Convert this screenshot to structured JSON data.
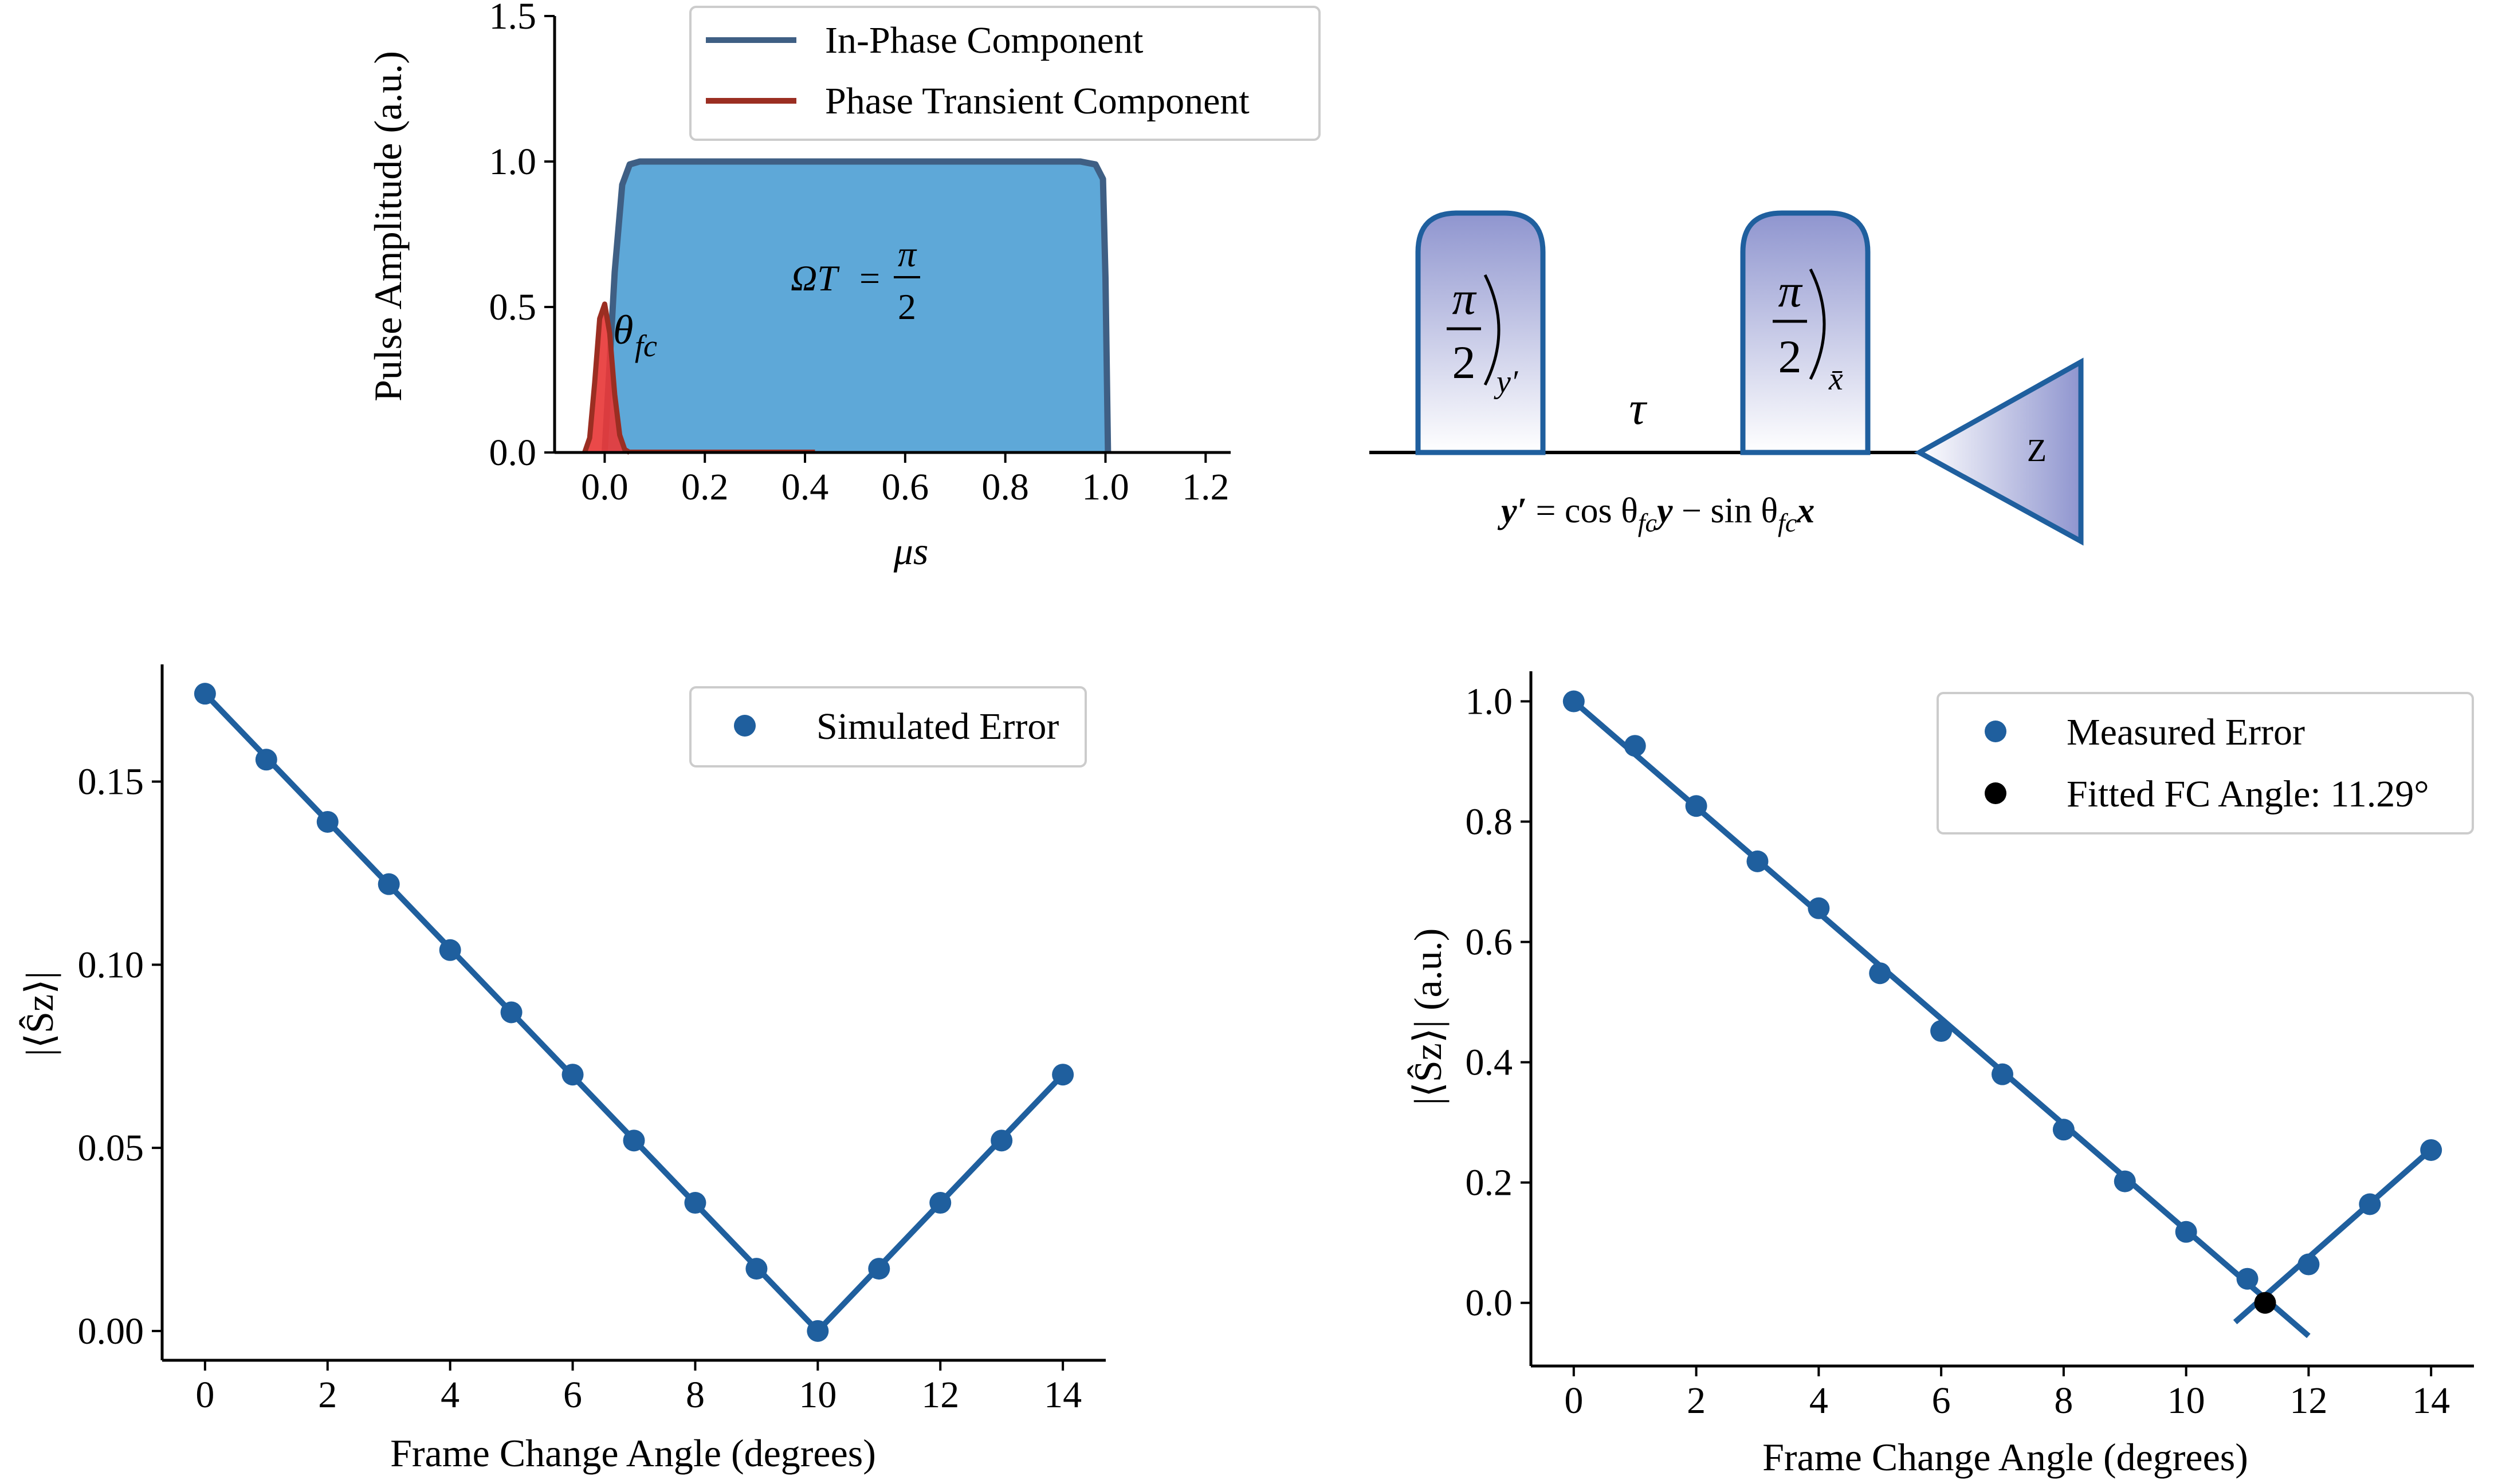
{
  "colors": {
    "in_phase": "#3f5f84",
    "in_phase_fill": "#5ea8d8",
    "transient": "#9b2e22",
    "transient_fill": "#e8393a",
    "series": "#1f5f9e",
    "fit_point": "#000000",
    "gate_border": "#1f5f9e",
    "gate_fill_top": "#9aa0d4",
    "legend_border": "#cccccc"
  },
  "chart_data": [
    {
      "id": "pulse",
      "type": "area",
      "xlabel": "μs",
      "ylabel": "Pulse Amplitude (a.u.)",
      "xlim": [
        -0.1,
        1.25
      ],
      "ylim": [
        0.0,
        1.5
      ],
      "xticks": [
        "0.0",
        "0.2",
        "0.4",
        "0.6",
        "0.8",
        "1.0",
        "1.2"
      ],
      "xtick_values": [
        0.0,
        0.2,
        0.4,
        0.6,
        0.8,
        1.0,
        1.2
      ],
      "yticks": [
        "0.0",
        "0.5",
        "1.0",
        "1.5"
      ],
      "ytick_values": [
        0.0,
        0.5,
        1.0,
        1.5
      ],
      "legend": [
        "In-Phase Component",
        "Phase Transient Component"
      ],
      "legend_position": "top-right",
      "annotations": {
        "omega_t": "ΩT",
        "equals": "=",
        "pi": "π",
        "two": "2",
        "theta": "θ",
        "theta_sub": "fc"
      },
      "series": [
        {
          "name": "In-Phase Component",
          "x": [
            0.0,
            0.02,
            0.035,
            0.05,
            0.07,
            0.5,
            0.95,
            0.98,
            0.995,
            1.0,
            1.005
          ],
          "y": [
            0.0,
            0.62,
            0.92,
            0.99,
            1.0,
            1.0,
            1.0,
            0.99,
            0.94,
            0.6,
            0.0
          ]
        },
        {
          "name": "Phase Transient Component",
          "x": [
            -0.04,
            -0.03,
            -0.02,
            -0.01,
            0.0,
            0.01,
            0.02,
            0.03,
            0.04,
            0.05
          ],
          "y": [
            0.0,
            0.05,
            0.24,
            0.46,
            0.51,
            0.41,
            0.2,
            0.06,
            0.01,
            0.0
          ]
        }
      ]
    },
    {
      "id": "simulated",
      "type": "scatter",
      "xlabel": "Frame Change Angle (degrees)",
      "ylabel": "|⟨Ŝz⟩|",
      "xlim": [
        -0.7,
        14.7
      ],
      "ylim": [
        -0.008,
        0.182
      ],
      "xticks": [
        "0",
        "2",
        "4",
        "6",
        "8",
        "10",
        "12",
        "14"
      ],
      "xtick_values": [
        0,
        2,
        4,
        6,
        8,
        10,
        12,
        14
      ],
      "yticks": [
        "0.00",
        "0.05",
        "0.10",
        "0.15"
      ],
      "ytick_values": [
        0.0,
        0.05,
        0.1,
        0.15
      ],
      "legend": [
        "Simulated Error"
      ],
      "legend_position": "top-right",
      "series": [
        {
          "name": "Simulated Error",
          "x": [
            0,
            1,
            2,
            3,
            4,
            5,
            6,
            7,
            8,
            9,
            10,
            11,
            12,
            13,
            14
          ],
          "y": [
            0.174,
            0.156,
            0.139,
            0.122,
            0.104,
            0.087,
            0.07,
            0.052,
            0.035,
            0.017,
            0.0,
            0.017,
            0.035,
            0.052,
            0.07
          ]
        }
      ],
      "fit_lines": [
        {
          "x": [
            0,
            10
          ],
          "y": [
            0.174,
            0.0
          ]
        },
        {
          "x": [
            10,
            14
          ],
          "y": [
            0.0,
            0.07
          ]
        }
      ]
    },
    {
      "id": "measured",
      "type": "scatter",
      "xlabel": "Frame Change Angle (degrees)",
      "ylabel": "|⟨Ŝz⟩| (a.u.)",
      "xlim": [
        -0.7,
        14.7
      ],
      "ylim": [
        -0.105,
        1.05
      ],
      "xticks": [
        "0",
        "2",
        "4",
        "6",
        "8",
        "10",
        "12",
        "14"
      ],
      "xtick_values": [
        0,
        2,
        4,
        6,
        8,
        10,
        12,
        14
      ],
      "yticks": [
        "0.0",
        "0.2",
        "0.4",
        "0.6",
        "0.8",
        "1.0"
      ],
      "ytick_values": [
        0.0,
        0.2,
        0.4,
        0.6,
        0.8,
        1.0
      ],
      "legend": [
        "Measured Error",
        "Fitted FC Angle: 11.29°"
      ],
      "legend_position": "top-right",
      "series": [
        {
          "name": "Measured Error",
          "x": [
            0,
            1,
            2,
            3,
            4,
            5,
            6,
            7,
            8,
            9,
            10,
            11,
            12,
            13,
            14
          ],
          "y": [
            1.0,
            0.926,
            0.826,
            0.734,
            0.656,
            0.548,
            0.452,
            0.38,
            0.288,
            0.202,
            0.118,
            0.04,
            0.064,
            0.164,
            0.254
          ]
        },
        {
          "name": "Fitted FC Angle: 11.29°",
          "x": [
            11.29
          ],
          "y": [
            0.0
          ]
        }
      ],
      "fit_lines": [
        {
          "x": [
            0,
            12.0
          ],
          "y": [
            1.0,
            -0.055
          ]
        },
        {
          "x": [
            10.8,
            14.0
          ],
          "y": [
            -0.032,
            0.255
          ]
        }
      ]
    }
  ],
  "diagram": {
    "gate1_pi": "π",
    "gate1_two": "2",
    "gate1_sub": "y′",
    "gate2_pi": "π",
    "gate2_two": "2",
    "gate2_sub": "x̄",
    "tau": "τ",
    "measure_label": "Z",
    "equation": "y′ = cos θfc y − sin θfc x",
    "eq_y_prime": "y′",
    "eq_equals_cos": " = cos θ",
    "eq_fc1": "fc",
    "eq_y": "y",
    "eq_minus_sin": " − sin θ",
    "eq_fc2": "fc",
    "eq_x": "x"
  }
}
